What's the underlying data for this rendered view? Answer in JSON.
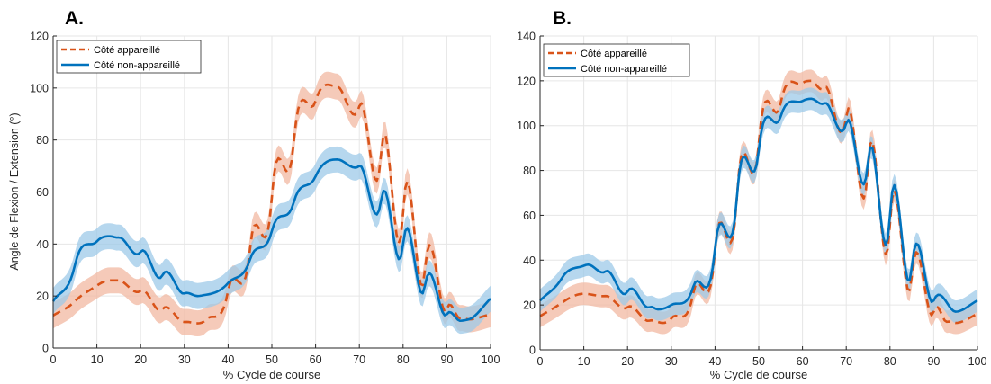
{
  "figure": {
    "panels": [
      {
        "label": "A.",
        "xlabel": "% Cycle de course",
        "ylabel": "Angle de Flexion / Extension (°)"
      },
      {
        "label": "B.",
        "xlabel": "% Cycle de course",
        "ylabel": ""
      }
    ]
  },
  "colors": {
    "appareille_line": "#D95319",
    "appareille_band": "#F2B8A2",
    "non_appareille_line": "#0072BD",
    "non_appareille_band": "#9ECAE8",
    "grid": "#e6e6e6",
    "axis": "#262626"
  },
  "chart_data": [
    {
      "type": "line",
      "title": "",
      "xlabel": "% Cycle de course",
      "ylabel": "Angle de Flexion / Extension (°)",
      "xlim": [
        0,
        100
      ],
      "ylim": [
        0,
        120
      ],
      "xticks": [
        0,
        10,
        20,
        30,
        40,
        50,
        60,
        70,
        80,
        90,
        100
      ],
      "yticks": [
        0,
        20,
        40,
        60,
        80,
        100,
        120
      ],
      "grid": true,
      "legend_position": "top-left",
      "series": [
        {
          "name": "Côté appareillé",
          "style": "dashed",
          "band_halfwidth": 5,
          "x": [
            0,
            5,
            10,
            13,
            15,
            20,
            25,
            30,
            33,
            35,
            40,
            45,
            50,
            55,
            60,
            65,
            70,
            75,
            80,
            85,
            90,
            93,
            95,
            100
          ],
          "y": [
            12.5,
            18,
            24,
            26,
            26,
            22,
            15,
            10,
            9.5,
            11,
            22,
            38,
            58,
            79,
            95,
            100.5,
            93,
            75,
            52,
            30,
            15,
            11.5,
            11,
            13
          ]
        },
        {
          "name": "Côté non-appareillé",
          "style": "solid",
          "band_halfwidth": 5,
          "x": [
            0,
            5,
            10,
            13,
            15,
            20,
            25,
            30,
            33,
            35,
            40,
            45,
            50,
            55,
            60,
            65,
            70,
            75,
            80,
            85,
            90,
            93,
            95,
            100
          ],
          "y": [
            18,
            32,
            41,
            43,
            42.5,
            37,
            28,
            21,
            20,
            20.5,
            25,
            34,
            45,
            56,
            66,
            72.5,
            70,
            57,
            40,
            24,
            13,
            10.5,
            11,
            19
          ]
        }
      ]
    },
    {
      "type": "line",
      "title": "",
      "xlabel": "% Cycle de course",
      "ylabel": "",
      "xlim": [
        0,
        100
      ],
      "ylim": [
        0,
        140
      ],
      "xticks": [
        0,
        10,
        20,
        30,
        40,
        50,
        60,
        70,
        80,
        90,
        100
      ],
      "yticks": [
        0,
        20,
        40,
        60,
        80,
        100,
        120,
        140
      ],
      "grid": true,
      "legend_position": "top-left",
      "series": [
        {
          "name": "Côté appareillé",
          "style": "dashed",
          "band_halfwidth": 5,
          "x": [
            0,
            5,
            10,
            15,
            20,
            25,
            28,
            30,
            35,
            40,
            45,
            50,
            55,
            60,
            62,
            65,
            70,
            75,
            80,
            85,
            90,
            93,
            95,
            100
          ],
          "y": [
            15,
            21,
            25,
            24,
            19,
            13,
            12,
            14,
            25,
            44,
            68,
            92,
            110,
            119,
            120,
            117,
            104,
            82,
            56,
            33,
            17,
            12.5,
            12,
            16
          ]
        },
        {
          "name": "Côté non-appareillé",
          "style": "solid",
          "band_halfwidth": 5,
          "x": [
            0,
            5,
            10,
            11,
            15,
            20,
            25,
            27,
            30,
            35,
            40,
            45,
            50,
            55,
            60,
            62,
            65,
            70,
            75,
            80,
            85,
            90,
            95,
            100
          ],
          "y": [
            22,
            32,
            37.5,
            38,
            35,
            26,
            19,
            18,
            20,
            28,
            45,
            68,
            89,
            104,
            111,
            112,
            110,
            101,
            84,
            60,
            37,
            22,
            17,
            22
          ]
        }
      ]
    }
  ]
}
